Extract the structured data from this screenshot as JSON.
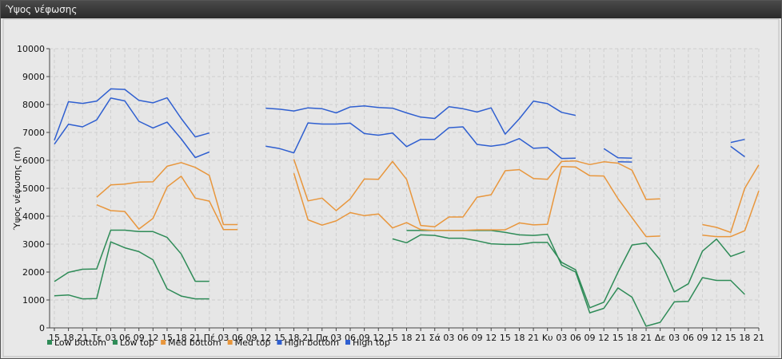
{
  "window": {
    "title": "Ύψος νέφωσης"
  },
  "chart_data": {
    "type": "line",
    "title": "",
    "ylabel": "Ύψος νέφωσης (m)",
    "xlabel": "",
    "ylim": [
      0,
      10000
    ],
    "y_ticks": [
      0,
      1000,
      2000,
      3000,
      4000,
      5000,
      6000,
      7000,
      8000,
      9000,
      10000
    ],
    "grid": true,
    "legend_position": "bottom-left",
    "categories": [
      "15",
      "18",
      "21",
      "Τε",
      "03",
      "06",
      "09",
      "12",
      "15",
      "18",
      "21",
      "Πέ",
      "03",
      "06",
      "09",
      "12",
      "15",
      "18",
      "21",
      "Πα",
      "03",
      "06",
      "09",
      "12",
      "15",
      "18",
      "21",
      "Σά",
      "03",
      "06",
      "09",
      "12",
      "15",
      "18",
      "21",
      "Κυ",
      "03",
      "06",
      "09",
      "12",
      "15",
      "18",
      "21",
      "Δε",
      "03",
      "06",
      "09",
      "12",
      "15",
      "18",
      "21"
    ],
    "series": [
      {
        "name": "Low bottom",
        "color": "#2e8b57",
        "values": [
          1150,
          1180,
          1040,
          1050,
          3080,
          2870,
          2730,
          2440,
          1400,
          1140,
          1040,
          1040,
          null,
          null,
          null,
          null,
          null,
          null,
          null,
          null,
          null,
          null,
          null,
          null,
          null,
          3490,
          3490,
          3490,
          3490,
          3490,
          3490,
          3490,
          3420,
          3330,
          3310,
          3350,
          2250,
          2000,
          540,
          700,
          1430,
          1100,
          60,
          200,
          930,
          950,
          1800,
          1700,
          1700,
          1200,
          null
        ]
      },
      {
        "name": "Low top",
        "color": "#2e8b57",
        "values": [
          1660,
          1990,
          2100,
          2110,
          3500,
          3500,
          3450,
          3450,
          3240,
          2650,
          1670,
          1670,
          null,
          null,
          null,
          null,
          null,
          null,
          null,
          null,
          null,
          null,
          null,
          null,
          3190,
          3050,
          3330,
          3310,
          3210,
          3210,
          3120,
          3010,
          2990,
          2990,
          3060,
          3060,
          2350,
          2080,
          720,
          920,
          1990,
          2970,
          3040,
          2430,
          1290,
          1580,
          2750,
          3180,
          2560,
          2740,
          null
        ]
      },
      {
        "name": "Med bottom",
        "color": "#e8963c",
        "values": [
          null,
          null,
          null,
          4410,
          4200,
          4170,
          3540,
          3920,
          5050,
          5430,
          4650,
          4540,
          3520,
          3520,
          null,
          null,
          null,
          5540,
          3870,
          3680,
          3830,
          4130,
          4020,
          4080,
          3580,
          3770,
          3520,
          3490,
          3490,
          3490,
          3510,
          3510,
          3510,
          3760,
          3690,
          3710,
          5780,
          5760,
          5450,
          5440,
          4630,
          3950,
          3270,
          3290,
          null,
          null,
          3320,
          3270,
          3270,
          3480,
          4910
        ]
      },
      {
        "name": "Med top",
        "color": "#e8963c",
        "values": [
          null,
          null,
          null,
          4680,
          5120,
          5150,
          5220,
          5230,
          5790,
          5920,
          5750,
          5460,
          3700,
          3700,
          null,
          null,
          null,
          6040,
          4550,
          4650,
          4200,
          4620,
          5330,
          5320,
          5960,
          5320,
          3670,
          3620,
          3970,
          3970,
          4680,
          4770,
          5630,
          5670,
          5350,
          5320,
          5960,
          5980,
          5850,
          5950,
          5900,
          5650,
          4600,
          4620,
          null,
          null,
          3700,
          3600,
          3420,
          5000,
          5840
        ]
      },
      {
        "name": "High bottom",
        "color": "#2f5fd0",
        "values": [
          6580,
          7290,
          7200,
          7450,
          8230,
          8130,
          7400,
          7160,
          7370,
          6770,
          6100,
          6300,
          null,
          null,
          null,
          6510,
          6420,
          6270,
          7340,
          7300,
          7300,
          7330,
          6960,
          6900,
          6980,
          6490,
          6750,
          6750,
          7170,
          7200,
          6570,
          6510,
          6580,
          6780,
          6430,
          6460,
          6070,
          6080,
          null,
          null,
          5950,
          5940,
          null,
          null,
          null,
          null,
          null,
          null,
          6500,
          6130,
          null
        ]
      },
      {
        "name": "High top",
        "color": "#2f5fd0",
        "values": [
          6720,
          8100,
          8040,
          8120,
          8560,
          8540,
          8150,
          8060,
          8240,
          7500,
          6840,
          6980,
          null,
          null,
          null,
          7870,
          7830,
          7770,
          7880,
          7850,
          7700,
          7910,
          7950,
          7890,
          7870,
          7700,
          7550,
          7500,
          7920,
          7850,
          7730,
          7880,
          6940,
          7490,
          8120,
          8030,
          7720,
          7610,
          null,
          6420,
          6090,
          6080,
          null,
          null,
          null,
          null,
          null,
          null,
          6640,
          6750,
          null
        ]
      }
    ]
  }
}
